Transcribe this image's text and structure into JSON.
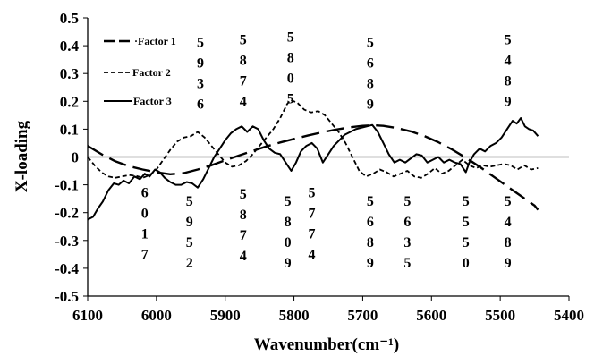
{
  "chart_data": {
    "type": "line",
    "title": "",
    "xlabel": "Wavenumber(cm⁻¹)",
    "ylabel": "X-loading",
    "x_ticks": [
      6100,
      6000,
      5900,
      5800,
      5700,
      5600,
      5500,
      5400
    ],
    "y_ticks": [
      0.5,
      0.4,
      0.3,
      0.2,
      0.1,
      0,
      -0.1,
      -0.2,
      -0.3,
      -0.4,
      -0.5
    ],
    "y_tick_labels": [
      "0.5",
      "0.4",
      "0.3",
      "0.2",
      "0.1",
      "0",
      "-0.1",
      "-0.2",
      "-0.3",
      "-0.4",
      "-0.5"
    ],
    "xlim": [
      6100,
      5400
    ],
    "ylim": [
      -0.5,
      0.5
    ],
    "x_reversed": true,
    "grid": false,
    "zero_line": true,
    "legend_position": "top-left",
    "legend_labels": [
      "·Factor 1",
      "Factor 2",
      "Factor 3"
    ],
    "series": [
      {
        "name": "Factor 1",
        "style": "long-dash",
        "points": [
          [
            6100,
            0.04
          ],
          [
            6080,
            0.01
          ],
          [
            6060,
            -0.015
          ],
          [
            6040,
            -0.033
          ],
          [
            6020,
            -0.045
          ],
          [
            6000,
            -0.055
          ],
          [
            5980,
            -0.062
          ],
          [
            5960,
            -0.058
          ],
          [
            5940,
            -0.045
          ],
          [
            5920,
            -0.03
          ],
          [
            5900,
            -0.012
          ],
          [
            5880,
            0.005
          ],
          [
            5860,
            0.022
          ],
          [
            5840,
            0.038
          ],
          [
            5820,
            0.052
          ],
          [
            5800,
            0.065
          ],
          [
            5780,
            0.077
          ],
          [
            5760,
            0.088
          ],
          [
            5740,
            0.098
          ],
          [
            5720,
            0.106
          ],
          [
            5700,
            0.112
          ],
          [
            5685,
            0.114
          ],
          [
            5670,
            0.112
          ],
          [
            5650,
            0.104
          ],
          [
            5630,
            0.092
          ],
          [
            5610,
            0.075
          ],
          [
            5590,
            0.053
          ],
          [
            5570,
            0.027
          ],
          [
            5550,
            -0.003
          ],
          [
            5530,
            -0.035
          ],
          [
            5510,
            -0.07
          ],
          [
            5490,
            -0.105
          ],
          [
            5470,
            -0.14
          ],
          [
            5450,
            -0.175
          ],
          [
            5445,
            -0.19
          ]
        ]
      },
      {
        "name": "Factor 2",
        "style": "short-dash",
        "points": [
          [
            6100,
            0.0
          ],
          [
            6090,
            -0.03
          ],
          [
            6080,
            -0.055
          ],
          [
            6070,
            -0.07
          ],
          [
            6060,
            -0.075
          ],
          [
            6050,
            -0.07
          ],
          [
            6040,
            -0.065
          ],
          [
            6030,
            -0.068
          ],
          [
            6020,
            -0.075
          ],
          [
            6010,
            -0.065
          ],
          [
            6000,
            -0.045
          ],
          [
            5990,
            -0.01
          ],
          [
            5980,
            0.025
          ],
          [
            5970,
            0.055
          ],
          [
            5960,
            0.07
          ],
          [
            5950,
            0.075
          ],
          [
            5940,
            0.09
          ],
          [
            5930,
            0.07
          ],
          [
            5920,
            0.04
          ],
          [
            5910,
            0.01
          ],
          [
            5900,
            -0.02
          ],
          [
            5890,
            -0.035
          ],
          [
            5880,
            -0.03
          ],
          [
            5870,
            -0.015
          ],
          [
            5860,
            0.01
          ],
          [
            5850,
            0.04
          ],
          [
            5840,
            0.07
          ],
          [
            5830,
            0.1
          ],
          [
            5820,
            0.14
          ],
          [
            5810,
            0.19
          ],
          [
            5805,
            0.205
          ],
          [
            5795,
            0.195
          ],
          [
            5785,
            0.17
          ],
          [
            5775,
            0.16
          ],
          [
            5765,
            0.165
          ],
          [
            5755,
            0.15
          ],
          [
            5745,
            0.12
          ],
          [
            5735,
            0.09
          ],
          [
            5725,
            0.05
          ],
          [
            5715,
            0.0
          ],
          [
            5705,
            -0.05
          ],
          [
            5695,
            -0.07
          ],
          [
            5685,
            -0.06
          ],
          [
            5675,
            -0.045
          ],
          [
            5665,
            -0.055
          ],
          [
            5655,
            -0.07
          ],
          [
            5645,
            -0.06
          ],
          [
            5635,
            -0.05
          ],
          [
            5625,
            -0.07
          ],
          [
            5615,
            -0.075
          ],
          [
            5605,
            -0.06
          ],
          [
            5595,
            -0.04
          ],
          [
            5585,
            -0.06
          ],
          [
            5575,
            -0.05
          ],
          [
            5565,
            -0.03
          ],
          [
            5555,
            -0.01
          ],
          [
            5545,
            -0.03
          ],
          [
            5535,
            -0.04
          ],
          [
            5525,
            -0.03
          ],
          [
            5515,
            -0.035
          ],
          [
            5505,
            -0.03
          ],
          [
            5495,
            -0.025
          ],
          [
            5485,
            -0.03
          ],
          [
            5475,
            -0.045
          ],
          [
            5465,
            -0.03
          ],
          [
            5455,
            -0.045
          ],
          [
            5445,
            -0.04
          ]
        ]
      },
      {
        "name": "Factor 3",
        "style": "solid",
        "points": [
          [
            6100,
            -0.225
          ],
          [
            6092,
            -0.215
          ],
          [
            6085,
            -0.185
          ],
          [
            6078,
            -0.16
          ],
          [
            6070,
            -0.12
          ],
          [
            6062,
            -0.095
          ],
          [
            6055,
            -0.1
          ],
          [
            6048,
            -0.085
          ],
          [
            6040,
            -0.095
          ],
          [
            6032,
            -0.07
          ],
          [
            6024,
            -0.08
          ],
          [
            6017,
            -0.06
          ],
          [
            6010,
            -0.07
          ],
          [
            6002,
            -0.045
          ],
          [
            5995,
            -0.055
          ],
          [
            5988,
            -0.075
          ],
          [
            5980,
            -0.09
          ],
          [
            5972,
            -0.1
          ],
          [
            5964,
            -0.1
          ],
          [
            5956,
            -0.09
          ],
          [
            5948,
            -0.095
          ],
          [
            5940,
            -0.11
          ],
          [
            5932,
            -0.08
          ],
          [
            5924,
            -0.04
          ],
          [
            5916,
            0.0
          ],
          [
            5908,
            0.03
          ],
          [
            5900,
            0.06
          ],
          [
            5892,
            0.085
          ],
          [
            5884,
            0.1
          ],
          [
            5876,
            0.11
          ],
          [
            5868,
            0.09
          ],
          [
            5860,
            0.11
          ],
          [
            5852,
            0.1
          ],
          [
            5844,
            0.06
          ],
          [
            5836,
            0.03
          ],
          [
            5828,
            0.015
          ],
          [
            5820,
            0.01
          ],
          [
            5812,
            -0.02
          ],
          [
            5804,
            -0.05
          ],
          [
            5797,
            -0.02
          ],
          [
            5790,
            0.02
          ],
          [
            5782,
            0.04
          ],
          [
            5774,
            0.05
          ],
          [
            5766,
            0.03
          ],
          [
            5758,
            -0.02
          ],
          [
            5750,
            0.01
          ],
          [
            5742,
            0.04
          ],
          [
            5734,
            0.06
          ],
          [
            5726,
            0.08
          ],
          [
            5718,
            0.09
          ],
          [
            5710,
            0.1
          ],
          [
            5702,
            0.105
          ],
          [
            5694,
            0.11
          ],
          [
            5686,
            0.115
          ],
          [
            5678,
            0.09
          ],
          [
            5670,
            0.05
          ],
          [
            5662,
            0.01
          ],
          [
            5654,
            -0.02
          ],
          [
            5646,
            -0.01
          ],
          [
            5638,
            -0.02
          ],
          [
            5630,
            -0.005
          ],
          [
            5622,
            0.01
          ],
          [
            5614,
            0.005
          ],
          [
            5606,
            -0.02
          ],
          [
            5598,
            -0.01
          ],
          [
            5590,
            0.0
          ],
          [
            5582,
            -0.02
          ],
          [
            5574,
            -0.01
          ],
          [
            5566,
            -0.02
          ],
          [
            5558,
            -0.025
          ],
          [
            5550,
            -0.055
          ],
          [
            5545,
            -0.02
          ],
          [
            5538,
            0.01
          ],
          [
            5530,
            0.03
          ],
          [
            5522,
            0.02
          ],
          [
            5514,
            0.04
          ],
          [
            5506,
            0.05
          ],
          [
            5498,
            0.07
          ],
          [
            5490,
            0.1
          ],
          [
            5482,
            0.13
          ],
          [
            5476,
            0.12
          ],
          [
            5470,
            0.14
          ],
          [
            5464,
            0.11
          ],
          [
            5458,
            0.1
          ],
          [
            5452,
            0.095
          ],
          [
            5445,
            0.075
          ]
        ]
      }
    ],
    "annotations": [
      {
        "label": "5936",
        "x": 5936,
        "y": 0.395
      },
      {
        "label": "5874",
        "x": 5874,
        "y": 0.405
      },
      {
        "label": "5805",
        "x": 5805,
        "y": 0.415
      },
      {
        "label": "5689",
        "x": 5689,
        "y": 0.395
      },
      {
        "label": "5489",
        "x": 5489,
        "y": 0.405
      },
      {
        "label": "6017",
        "x": 6017,
        "y": -0.145
      },
      {
        "label": "5952",
        "x": 5952,
        "y": -0.175
      },
      {
        "label": "5874",
        "x": 5874,
        "y": -0.15
      },
      {
        "label": "5809",
        "x": 5809,
        "y": -0.175
      },
      {
        "label": "5774",
        "x": 5774,
        "y": -0.145
      },
      {
        "label": "5689",
        "x": 5689,
        "y": -0.175
      },
      {
        "label": "5635",
        "x": 5635,
        "y": -0.175
      },
      {
        "label": "5550",
        "x": 5550,
        "y": -0.175
      },
      {
        "label": "5489",
        "x": 5489,
        "y": -0.175
      }
    ]
  }
}
